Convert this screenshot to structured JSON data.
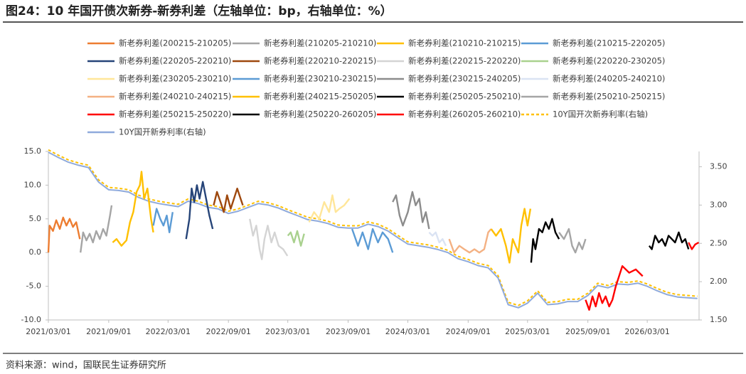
{
  "chart_data": {
    "type": "line",
    "title": "图24：10 年国开债次新券-新券利差（左轴单位：bp，右轴单位：%）",
    "source": "资料来源：wind，国联民生证券研究所",
    "xlim": [
      "2021/03/01",
      "2026/08/06"
    ],
    "xticks": [
      "2021/03/01",
      "2021/09/01",
      "2022/03/01",
      "2022/09/01",
      "2023/03/01",
      "2023/09/01",
      "2024/03/01",
      "2024/09/01",
      "2025/03/01",
      "2025/09/01",
      "2026/03/01"
    ],
    "ylim": [
      -10,
      15
    ],
    "yticks": [
      {
        "value": 15,
        "label": "15.0"
      },
      {
        "value": 10,
        "label": "10.0"
      },
      {
        "value": 5,
        "label": "5.0"
      },
      {
        "value": 0,
        "label": "0.0"
      },
      {
        "value": -5,
        "label": "-5.0"
      },
      {
        "value": -10,
        "label": "-10.0"
      }
    ],
    "y2lim": [
      1.5,
      3.7
    ],
    "y2ticks": [
      {
        "value": 3.5,
        "label": "3.50"
      },
      {
        "value": 3,
        "label": "3.00"
      },
      {
        "value": 2.5,
        "label": "2.50"
      },
      {
        "value": 2,
        "label": "2.00"
      },
      {
        "value": 1.5,
        "label": "1.50"
      }
    ],
    "series": [
      {
        "name": "新老券利差(200215-210205)",
        "color": "#ED7D31",
        "x": [
          "2021/03/01",
          "2021/03/05",
          "2021/03/15",
          "2021/03/25",
          "2021/04/05",
          "2021/04/15",
          "2021/04/25",
          "2021/05/05",
          "2021/05/15",
          "2021/05/25",
          "2021/06/05"
        ],
        "values": [
          0,
          4.0,
          3.2,
          4.8,
          3.5,
          5.2,
          4.0,
          5.0,
          3.8,
          4.5,
          2.0
        ]
      },
      {
        "name": "新老券利差(210205-210210)",
        "color": "#A5A5A5",
        "x": [
          "2021/06/07",
          "2021/06/15",
          "2021/06/25",
          "2021/07/05",
          "2021/07/15",
          "2021/07/25",
          "2021/08/05",
          "2021/08/15",
          "2021/08/25",
          "2021/09/05",
          "2021/09/10"
        ],
        "values": [
          0,
          3.0,
          1.8,
          2.8,
          1.5,
          3.2,
          2.0,
          3.5,
          2.5,
          5.5,
          7.0
        ]
      },
      {
        "name": "新老券利差(210210-210215)",
        "color": "#FFC000",
        "x": [
          "2021/09/13",
          "2021/09/25",
          "2021/10/10",
          "2021/10/25",
          "2021/11/05",
          "2021/11/15",
          "2021/11/25",
          "2021/12/05",
          "2021/12/10",
          "2021/12/18",
          "2021/12/28",
          "2022/01/08",
          "2022/01/15"
        ],
        "values": [
          1.5,
          2.0,
          1.0,
          1.8,
          4.5,
          6.0,
          9.0,
          10.0,
          12.0,
          8.0,
          9.5,
          5.0,
          3.0
        ]
      },
      {
        "name": "新老券利差(210215-220205)",
        "color": "#5B9BD5",
        "x": [
          "2022/01/15",
          "2022/01/25",
          "2022/02/05",
          "2022/02/15",
          "2022/02/25",
          "2022/03/05",
          "2022/03/15"
        ],
        "values": [
          4.0,
          6.5,
          5.0,
          4.0,
          5.5,
          3.0,
          6.0
        ]
      },
      {
        "name": "新老券利差(220205-220210)",
        "color": "#264478",
        "x": [
          "2022/04/25",
          "2022/05/05",
          "2022/05/12",
          "2022/05/20",
          "2022/05/28",
          "2022/06/05",
          "2022/06/15",
          "2022/06/25",
          "2022/07/05",
          "2022/07/15"
        ],
        "values": [
          2.0,
          5.0,
          9.5,
          7.5,
          10.0,
          8.0,
          10.5,
          8.0,
          5.5,
          3.5
        ]
      },
      {
        "name": "新老券利差(220210-220215)",
        "color": "#9E480E",
        "x": [
          "2022/07/18",
          "2022/07/28",
          "2022/08/08",
          "2022/08/18",
          "2022/08/28",
          "2022/09/08",
          "2022/09/18",
          "2022/09/28",
          "2022/10/08",
          "2022/10/15"
        ],
        "values": [
          7.0,
          9.0,
          7.5,
          6.0,
          8.5,
          6.5,
          8.0,
          9.5,
          8.0,
          7.0
        ]
      },
      {
        "name": "新老券利差(220215-220220)",
        "color": "#D4D4D4",
        "x": [
          "2022/11/05",
          "2022/11/15",
          "2022/11/25",
          "2022/12/05",
          "2022/12/12",
          "2022/12/20",
          "2022/12/30",
          "2023/01/10",
          "2023/01/20",
          "2023/02/01",
          "2023/02/15",
          "2023/02/28"
        ],
        "values": [
          5.0,
          2.5,
          4.0,
          0.5,
          -1.0,
          2.0,
          4.0,
          1.5,
          3.0,
          1.0,
          0.5,
          -0.5
        ]
      },
      {
        "name": "新老券利差(220220-230205)",
        "color": "#A9D18E",
        "x": [
          "2023/03/01",
          "2023/03/10",
          "2023/03/20",
          "2023/03/30",
          "2023/04/10",
          "2023/04/20"
        ],
        "values": [
          2.5,
          3.0,
          1.5,
          3.2,
          1.0,
          2.8
        ]
      },
      {
        "name": "新老券利差(230205-230210)",
        "color": "#FFE699",
        "x": [
          "2023/05/05",
          "2023/05/20",
          "2023/06/05",
          "2023/06/20",
          "2023/07/05",
          "2023/07/15",
          "2023/07/25",
          "2023/08/05",
          "2023/08/20",
          "2023/09/05"
        ],
        "values": [
          4.5,
          6.0,
          5.0,
          7.5,
          6.0,
          8.5,
          6.0,
          6.5,
          7.0,
          8.0
        ]
      },
      {
        "name": "新老券利差(230210-230215)",
        "color": "#5B9BD5",
        "x": [
          "2023/09/13",
          "2023/10/01",
          "2023/10/15",
          "2023/11/01",
          "2023/11/15",
          "2023/12/01",
          "2023/12/15",
          "2024/01/01",
          "2024/01/15"
        ],
        "values": [
          3.5,
          1.0,
          3.0,
          0.5,
          3.5,
          1.5,
          3.0,
          2.0,
          0.0
        ]
      },
      {
        "name": "新老券利差(230215-240205)",
        "color": "#8C8C8C",
        "x": [
          "2024/01/15",
          "2024/01/25",
          "2024/02/05",
          "2024/02/15",
          "2024/03/01",
          "2024/03/15",
          "2024/03/25",
          "2024/04/05",
          "2024/04/15",
          "2024/04/25",
          "2024/05/05"
        ],
        "values": [
          7.5,
          8.5,
          5.5,
          4.0,
          6.0,
          9.0,
          7.0,
          8.0,
          4.5,
          6.0,
          3.5
        ]
      },
      {
        "name": "新老券利差(240205-240210)",
        "color": "#DAE3F3",
        "x": [
          "2024/05/05",
          "2024/05/15",
          "2024/05/25",
          "2024/06/05",
          "2024/06/15",
          "2024/06/25"
        ],
        "values": [
          3.0,
          2.5,
          3.0,
          1.5,
          2.0,
          1.0
        ]
      },
      {
        "name": "新老券利差(240210-240215)",
        "color": "#F4B183",
        "x": [
          "2024/07/05",
          "2024/07/20",
          "2024/08/05",
          "2024/08/20",
          "2024/09/05",
          "2024/09/20",
          "2024/10/05",
          "2024/10/20",
          "2024/11/01",
          "2024/11/10"
        ],
        "values": [
          2.0,
          0.0,
          1.0,
          0.5,
          0.0,
          0.5,
          0.0,
          0.5,
          3.0,
          3.5
        ]
      },
      {
        "name": "新老券利差(240215-250205)",
        "color": "#FFC000",
        "x": [
          "2024/11/10",
          "2024/11/25",
          "2024/12/10",
          "2024/12/25",
          "2025/01/05",
          "2025/01/15",
          "2025/02/01",
          "2025/02/10",
          "2025/02/20",
          "2025/03/01",
          "2025/03/10"
        ],
        "values": [
          3.5,
          2.5,
          3.5,
          1.0,
          -1.5,
          2.0,
          0.0,
          4.0,
          6.5,
          4.0,
          6.5
        ]
      },
      {
        "name": "新老券利差(250205-250210)",
        "color": "#000000",
        "x": [
          "2025/03/12",
          "2025/03/18",
          "2025/03/25",
          "2025/04/05",
          "2025/04/15",
          "2025/04/25",
          "2025/05/05",
          "2025/05/15",
          "2025/05/25",
          "2025/06/05"
        ],
        "values": [
          -1.5,
          2.0,
          0.5,
          3.5,
          3.0,
          4.5,
          3.5,
          5.0,
          3.0,
          2.0
        ]
      },
      {
        "name": "新老券利差(250210-250215)",
        "color": "#A5A5A5",
        "x": [
          "2025/06/05",
          "2025/06/20",
          "2025/07/05",
          "2025/07/15",
          "2025/07/25",
          "2025/08/05",
          "2025/08/15",
          "2025/08/25"
        ],
        "values": [
          3.0,
          2.0,
          3.5,
          1.0,
          0.0,
          1.5,
          0.5,
          2.0
        ]
      },
      {
        "name": "新老券利差(250215-250220)",
        "color": "#FF0000",
        "x": [
          "2025/08/25",
          "2025/09/05",
          "2025/09/15",
          "2025/09/25",
          "2025/10/05",
          "2025/10/15",
          "2025/10/25",
          "2025/11/05",
          "2025/11/15",
          "2025/11/25",
          "2025/12/15",
          "2026/01/05",
          "2026/01/25",
          "2026/02/15"
        ],
        "values": [
          -7.0,
          -8.5,
          -6.5,
          -8.0,
          -6.0,
          -7.5,
          -6.5,
          -8.0,
          -7.0,
          -5.0,
          -2.0,
          -3.0,
          -2.5,
          -3.5
        ]
      },
      {
        "name": "新老券利差(250220-260205)",
        "color": "#000000",
        "x": [
          "2026/03/07",
          "2026/03/15",
          "2026/03/25",
          "2026/04/05",
          "2026/04/15",
          "2026/04/25",
          "2026/05/05",
          "2026/05/15",
          "2026/05/25",
          "2026/06/05",
          "2026/06/15",
          "2026/06/25",
          "2026/07/05"
        ],
        "values": [
          1.0,
          0.5,
          2.5,
          1.5,
          2.0,
          1.0,
          2.5,
          2.0,
          1.5,
          3.0,
          1.5,
          2.0,
          0.5
        ]
      },
      {
        "name": "新老券利差(260205-260210)",
        "color": "#FF0000",
        "x": [
          "2026/07/05",
          "2026/07/15",
          "2026/07/25",
          "2026/08/05"
        ],
        "values": [
          1.5,
          0.5,
          1.2,
          1.5
        ]
      },
      {
        "name": "10Y国开次新券利率(右轴)",
        "color": "#FFC000",
        "axis": "y2",
        "line_style": "dashed",
        "x": [
          "2021/03/01",
          "2021/04/01",
          "2021/05/01",
          "2021/06/01",
          "2021/07/01",
          "2021/08/01",
          "2021/09/01",
          "2021/10/01",
          "2021/11/01",
          "2021/12/01",
          "2022/01/01",
          "2022/02/01",
          "2022/03/01",
          "2022/04/01",
          "2022/05/01",
          "2022/06/01",
          "2022/07/01",
          "2022/08/01",
          "2022/09/01",
          "2022/10/01",
          "2022/11/01",
          "2022/12/01",
          "2023/01/01",
          "2023/02/01",
          "2023/03/01",
          "2023/04/01",
          "2023/05/01",
          "2023/06/01",
          "2023/07/01",
          "2023/08/01",
          "2023/09/01",
          "2023/10/01",
          "2023/11/01",
          "2023/12/01",
          "2024/01/01",
          "2024/02/01",
          "2024/03/01",
          "2024/04/01",
          "2024/05/01",
          "2024/06/01",
          "2024/07/01",
          "2024/08/01",
          "2024/09/01",
          "2024/10/01",
          "2024/11/01",
          "2024/12/01",
          "2025/01/01",
          "2025/02/01",
          "2025/03/01",
          "2025/04/01",
          "2025/05/01",
          "2025/06/01",
          "2025/07/01",
          "2025/08/01",
          "2025/09/01",
          "2025/10/01",
          "2025/11/01",
          "2025/12/01",
          "2026/01/01",
          "2026/02/01",
          "2026/03/01",
          "2026/04/01",
          "2026/05/01",
          "2026/06/01",
          "2026/07/01",
          "2026/08/01"
        ],
        "values": [
          3.72,
          3.65,
          3.59,
          3.55,
          3.52,
          3.33,
          3.23,
          3.22,
          3.2,
          3.13,
          3.08,
          3.05,
          3.03,
          3.01,
          3.08,
          3.05,
          3.0,
          2.98,
          2.92,
          2.95,
          3.0,
          3.05,
          3.03,
          2.99,
          2.94,
          2.89,
          2.84,
          2.82,
          2.79,
          2.74,
          2.73,
          2.73,
          2.78,
          2.75,
          2.69,
          2.6,
          2.52,
          2.5,
          2.48,
          2.45,
          2.41,
          2.33,
          2.29,
          2.24,
          2.21,
          2.08,
          1.73,
          1.69,
          1.75,
          1.88,
          1.73,
          1.74,
          1.77,
          1.77,
          1.85,
          1.98,
          1.95,
          2.0,
          1.99,
          2.01,
          1.97,
          1.91,
          1.86,
          1.83,
          1.82,
          1.81
        ]
      },
      {
        "name": "10Y国开新券利率(右轴)",
        "color": "#8FAADC",
        "axis": "y2",
        "line_style": "solid",
        "x": [
          "2021/03/01",
          "2021/04/01",
          "2021/05/01",
          "2021/06/01",
          "2021/07/01",
          "2021/08/01",
          "2021/09/01",
          "2021/10/01",
          "2021/11/01",
          "2021/12/01",
          "2022/01/01",
          "2022/02/01",
          "2022/03/01",
          "2022/04/01",
          "2022/05/01",
          "2022/06/01",
          "2022/07/01",
          "2022/08/01",
          "2022/09/01",
          "2022/10/01",
          "2022/11/01",
          "2022/12/01",
          "2023/01/01",
          "2023/02/01",
          "2023/03/01",
          "2023/04/01",
          "2023/05/01",
          "2023/06/01",
          "2023/07/01",
          "2023/08/01",
          "2023/09/01",
          "2023/10/01",
          "2023/11/01",
          "2023/12/01",
          "2024/01/01",
          "2024/02/01",
          "2024/03/01",
          "2024/04/01",
          "2024/05/01",
          "2024/06/01",
          "2024/07/01",
          "2024/08/01",
          "2024/09/01",
          "2024/10/01",
          "2024/11/01",
          "2024/12/01",
          "2025/01/01",
          "2025/02/01",
          "2025/03/01",
          "2025/04/01",
          "2025/05/01",
          "2025/06/01",
          "2025/07/01",
          "2025/08/01",
          "2025/09/01",
          "2025/10/01",
          "2025/11/01",
          "2025/12/01",
          "2026/01/01",
          "2026/02/01",
          "2026/03/01",
          "2026/04/01",
          "2026/05/01",
          "2026/06/01",
          "2026/07/01",
          "2026/08/01"
        ],
        "values": [
          3.69,
          3.62,
          3.56,
          3.52,
          3.49,
          3.3,
          3.2,
          3.19,
          3.17,
          3.1,
          3.05,
          3.02,
          3.0,
          2.98,
          3.05,
          3.02,
          2.97,
          2.95,
          2.89,
          2.92,
          2.97,
          3.02,
          3.0,
          2.96,
          2.91,
          2.86,
          2.81,
          2.79,
          2.76,
          2.71,
          2.7,
          2.7,
          2.75,
          2.72,
          2.66,
          2.57,
          2.49,
          2.47,
          2.45,
          2.42,
          2.38,
          2.3,
          2.26,
          2.21,
          2.18,
          2.05,
          1.7,
          1.66,
          1.72,
          1.85,
          1.7,
          1.71,
          1.74,
          1.74,
          1.82,
          1.95,
          1.92,
          1.97,
          1.96,
          1.98,
          1.94,
          1.88,
          1.83,
          1.8,
          1.79,
          1.78
        ]
      }
    ]
  }
}
